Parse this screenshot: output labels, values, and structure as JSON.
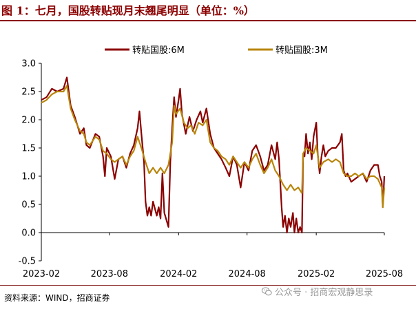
{
  "header": {
    "title": "图 1：七月，国股转贴现月末翘尾明显（单位：%）"
  },
  "footer": {
    "source": "资料来源：WIND，招商证券",
    "watermark": "公众号 · 招商宏观静思录",
    "watermark_icon": "wechat-icon"
  },
  "colors": {
    "series_6m": "#8b0000",
    "series_3m": "#b8860b",
    "title": "#8b0000"
  },
  "chart_data": {
    "type": "line",
    "title": "",
    "xlabel": "",
    "ylabel": "",
    "ylim": [
      -0.5,
      3.0
    ],
    "yticks": [
      "3.0",
      "2.5",
      "2.0",
      "1.5",
      "1.0",
      "0.5",
      "0.0",
      "-0.5"
    ],
    "xticks": [
      "2023-02",
      "2023-08",
      "2024-02",
      "2024-08",
      "2025-02",
      "2025-08"
    ],
    "xlim": [
      "2023-02",
      "2025-08"
    ],
    "grid": false,
    "legend_position": "top",
    "series": [
      {
        "name": "转贴国股:6M",
        "color": "#8b0000",
        "points": [
          [
            "2023-02-01",
            2.35
          ],
          [
            "2023-02-15",
            2.4
          ],
          [
            "2023-03-01",
            2.55
          ],
          [
            "2023-03-15",
            2.5
          ],
          [
            "2023-04-01",
            2.55
          ],
          [
            "2023-04-10",
            2.75
          ],
          [
            "2023-04-20",
            2.25
          ],
          [
            "2023-05-01",
            2.05
          ],
          [
            "2023-05-15",
            1.75
          ],
          [
            "2023-05-25",
            1.85
          ],
          [
            "2023-06-01",
            1.55
          ],
          [
            "2023-06-10",
            1.5
          ],
          [
            "2023-06-25",
            1.75
          ],
          [
            "2023-07-05",
            1.7
          ],
          [
            "2023-07-15",
            1.35
          ],
          [
            "2023-07-20",
            1.0
          ],
          [
            "2023-07-25",
            1.5
          ],
          [
            "2023-08-05",
            1.35
          ],
          [
            "2023-08-15",
            0.95
          ],
          [
            "2023-08-25",
            1.3
          ],
          [
            "2023-09-05",
            1.35
          ],
          [
            "2023-09-15",
            1.15
          ],
          [
            "2023-09-25",
            1.4
          ],
          [
            "2023-10-05",
            1.55
          ],
          [
            "2023-10-15",
            1.85
          ],
          [
            "2023-10-20",
            2.15
          ],
          [
            "2023-10-25",
            1.75
          ],
          [
            "2023-11-01",
            1.25
          ],
          [
            "2023-11-05",
            0.55
          ],
          [
            "2023-11-10",
            0.3
          ],
          [
            "2023-11-15",
            0.45
          ],
          [
            "2023-11-20",
            0.3
          ],
          [
            "2023-11-25",
            0.55
          ],
          [
            "2023-12-05",
            0.3
          ],
          [
            "2023-12-10",
            0.45
          ],
          [
            "2023-12-15",
            0.25
          ],
          [
            "2023-12-20",
            1.05
          ],
          [
            "2023-12-25",
            0.35
          ],
          [
            "2024-01-05",
            0.1
          ],
          [
            "2024-01-10",
            1.25
          ],
          [
            "2024-01-15",
            1.85
          ],
          [
            "2024-01-20",
            2.4
          ],
          [
            "2024-01-25",
            2.05
          ],
          [
            "2024-02-01",
            2.35
          ],
          [
            "2024-02-05",
            2.55
          ],
          [
            "2024-02-10",
            2.1
          ],
          [
            "2024-02-20",
            1.75
          ],
          [
            "2024-03-01",
            2.05
          ],
          [
            "2024-03-10",
            1.8
          ],
          [
            "2024-03-20",
            2.0
          ],
          [
            "2024-03-30",
            2.15
          ],
          [
            "2024-04-05",
            1.95
          ],
          [
            "2024-04-15",
            2.2
          ],
          [
            "2024-04-25",
            1.75
          ],
          [
            "2024-05-05",
            1.5
          ],
          [
            "2024-05-15",
            1.4
          ],
          [
            "2024-05-25",
            1.3
          ],
          [
            "2024-06-05",
            1.15
          ],
          [
            "2024-06-15",
            1.0
          ],
          [
            "2024-06-25",
            1.35
          ],
          [
            "2024-07-05",
            1.2
          ],
          [
            "2024-07-15",
            0.8
          ],
          [
            "2024-07-25",
            1.25
          ],
          [
            "2024-08-05",
            1.1
          ],
          [
            "2024-08-15",
            1.45
          ],
          [
            "2024-08-25",
            1.55
          ],
          [
            "2024-09-05",
            1.35
          ],
          [
            "2024-09-15",
            1.1
          ],
          [
            "2024-09-25",
            1.2
          ],
          [
            "2024-10-05",
            1.55
          ],
          [
            "2024-10-15",
            1.3
          ],
          [
            "2024-10-20",
            1.6
          ],
          [
            "2024-10-25",
            1.3
          ],
          [
            "2024-11-01",
            0.45
          ],
          [
            "2024-11-05",
            0.1
          ],
          [
            "2024-11-10",
            0.3
          ],
          [
            "2024-11-15",
            0.0
          ],
          [
            "2024-11-20",
            0.25
          ],
          [
            "2024-11-25",
            0.1
          ],
          [
            "2024-12-01",
            0.35
          ],
          [
            "2024-12-05",
            0.0
          ],
          [
            "2024-12-10",
            0.25
          ],
          [
            "2024-12-15",
            0.0
          ],
          [
            "2024-12-20",
            0.1
          ],
          [
            "2024-12-25",
            0.0
          ],
          [
            "2024-12-28",
            1.4
          ],
          [
            "2025-01-01",
            1.35
          ],
          [
            "2025-01-05",
            1.75
          ],
          [
            "2025-01-10",
            1.4
          ],
          [
            "2025-01-15",
            1.6
          ],
          [
            "2025-01-20",
            1.3
          ],
          [
            "2025-01-25",
            1.7
          ],
          [
            "2025-02-01",
            1.95
          ],
          [
            "2025-02-05",
            1.4
          ],
          [
            "2025-02-10",
            1.05
          ],
          [
            "2025-02-15",
            1.35
          ],
          [
            "2025-02-20",
            1.55
          ],
          [
            "2025-02-25",
            1.35
          ],
          [
            "2025-03-05",
            1.45
          ],
          [
            "2025-03-15",
            1.5
          ],
          [
            "2025-03-25",
            1.5
          ],
          [
            "2025-04-05",
            1.6
          ],
          [
            "2025-04-10",
            1.75
          ],
          [
            "2025-04-15",
            1.1
          ],
          [
            "2025-04-20",
            1.0
          ],
          [
            "2025-04-25",
            1.05
          ],
          [
            "2025-05-05",
            0.9
          ],
          [
            "2025-05-15",
            0.95
          ],
          [
            "2025-05-25",
            1.0
          ],
          [
            "2025-06-05",
            1.05
          ],
          [
            "2025-06-15",
            0.9
          ],
          [
            "2025-06-25",
            1.1
          ],
          [
            "2025-07-05",
            1.2
          ],
          [
            "2025-07-15",
            1.2
          ],
          [
            "2025-07-20",
            1.0
          ],
          [
            "2025-07-25",
            0.9
          ],
          [
            "2025-07-28",
            0.45
          ],
          [
            "2025-08-01",
            1.0
          ]
        ]
      },
      {
        "name": "转贴国股:3M",
        "color": "#b8860b",
        "points": [
          [
            "2023-02-01",
            2.3
          ],
          [
            "2023-02-15",
            2.35
          ],
          [
            "2023-03-01",
            2.45
          ],
          [
            "2023-03-15",
            2.5
          ],
          [
            "2023-04-01",
            2.5
          ],
          [
            "2023-04-10",
            2.6
          ],
          [
            "2023-04-20",
            2.2
          ],
          [
            "2023-05-01",
            2.0
          ],
          [
            "2023-05-15",
            1.8
          ],
          [
            "2023-05-25",
            1.75
          ],
          [
            "2023-06-01",
            1.6
          ],
          [
            "2023-06-10",
            1.55
          ],
          [
            "2023-06-25",
            1.7
          ],
          [
            "2023-07-05",
            1.65
          ],
          [
            "2023-07-15",
            1.45
          ],
          [
            "2023-07-25",
            1.4
          ],
          [
            "2023-08-05",
            1.3
          ],
          [
            "2023-08-15",
            1.25
          ],
          [
            "2023-08-25",
            1.3
          ],
          [
            "2023-09-05",
            1.35
          ],
          [
            "2023-09-15",
            1.2
          ],
          [
            "2023-09-25",
            1.35
          ],
          [
            "2023-10-05",
            1.45
          ],
          [
            "2023-10-15",
            1.7
          ],
          [
            "2023-10-25",
            1.5
          ],
          [
            "2023-11-05",
            1.25
          ],
          [
            "2023-11-15",
            1.05
          ],
          [
            "2023-11-25",
            1.15
          ],
          [
            "2023-12-05",
            1.05
          ],
          [
            "2023-12-15",
            1.15
          ],
          [
            "2023-12-25",
            1.05
          ],
          [
            "2024-01-05",
            1.2
          ],
          [
            "2024-01-15",
            1.6
          ],
          [
            "2024-01-20",
            2.25
          ],
          [
            "2024-01-25",
            2.1
          ],
          [
            "2024-02-05",
            2.2
          ],
          [
            "2024-02-15",
            1.95
          ],
          [
            "2024-02-25",
            1.85
          ],
          [
            "2024-03-05",
            1.9
          ],
          [
            "2024-03-15",
            1.75
          ],
          [
            "2024-03-25",
            1.95
          ],
          [
            "2024-04-05",
            1.9
          ],
          [
            "2024-04-15",
            2.0
          ],
          [
            "2024-04-25",
            1.6
          ],
          [
            "2024-05-05",
            1.5
          ],
          [
            "2024-05-15",
            1.45
          ],
          [
            "2024-05-25",
            1.35
          ],
          [
            "2024-06-05",
            1.3
          ],
          [
            "2024-06-15",
            1.2
          ],
          [
            "2024-06-25",
            1.35
          ],
          [
            "2024-07-05",
            1.25
          ],
          [
            "2024-07-15",
            1.15
          ],
          [
            "2024-07-25",
            1.25
          ],
          [
            "2024-08-05",
            1.15
          ],
          [
            "2024-08-15",
            1.3
          ],
          [
            "2024-08-25",
            1.4
          ],
          [
            "2024-09-05",
            1.2
          ],
          [
            "2024-09-15",
            1.05
          ],
          [
            "2024-09-25",
            1.15
          ],
          [
            "2024-10-05",
            1.3
          ],
          [
            "2024-10-15",
            1.1
          ],
          [
            "2024-10-25",
            1.0
          ],
          [
            "2024-11-05",
            0.85
          ],
          [
            "2024-11-15",
            0.75
          ],
          [
            "2024-11-25",
            0.85
          ],
          [
            "2024-12-05",
            0.75
          ],
          [
            "2024-12-15",
            0.8
          ],
          [
            "2024-12-25",
            0.7
          ],
          [
            "2024-12-28",
            1.4
          ],
          [
            "2025-01-05",
            1.5
          ],
          [
            "2025-01-15",
            1.45
          ],
          [
            "2025-01-25",
            1.4
          ],
          [
            "2025-02-01",
            1.55
          ],
          [
            "2025-02-10",
            1.15
          ],
          [
            "2025-02-20",
            1.25
          ],
          [
            "2025-03-05",
            1.3
          ],
          [
            "2025-03-15",
            1.25
          ],
          [
            "2025-03-25",
            1.3
          ],
          [
            "2025-04-05",
            1.25
          ],
          [
            "2025-04-15",
            1.05
          ],
          [
            "2025-04-25",
            1.0
          ],
          [
            "2025-05-05",
            1.0
          ],
          [
            "2025-05-15",
            1.05
          ],
          [
            "2025-05-25",
            1.0
          ],
          [
            "2025-06-05",
            1.05
          ],
          [
            "2025-06-15",
            0.95
          ],
          [
            "2025-06-25",
            1.0
          ],
          [
            "2025-07-05",
            1.0
          ],
          [
            "2025-07-15",
            0.95
          ],
          [
            "2025-07-25",
            0.8
          ],
          [
            "2025-07-28",
            0.45
          ],
          [
            "2025-08-01",
            0.8
          ]
        ]
      }
    ]
  }
}
